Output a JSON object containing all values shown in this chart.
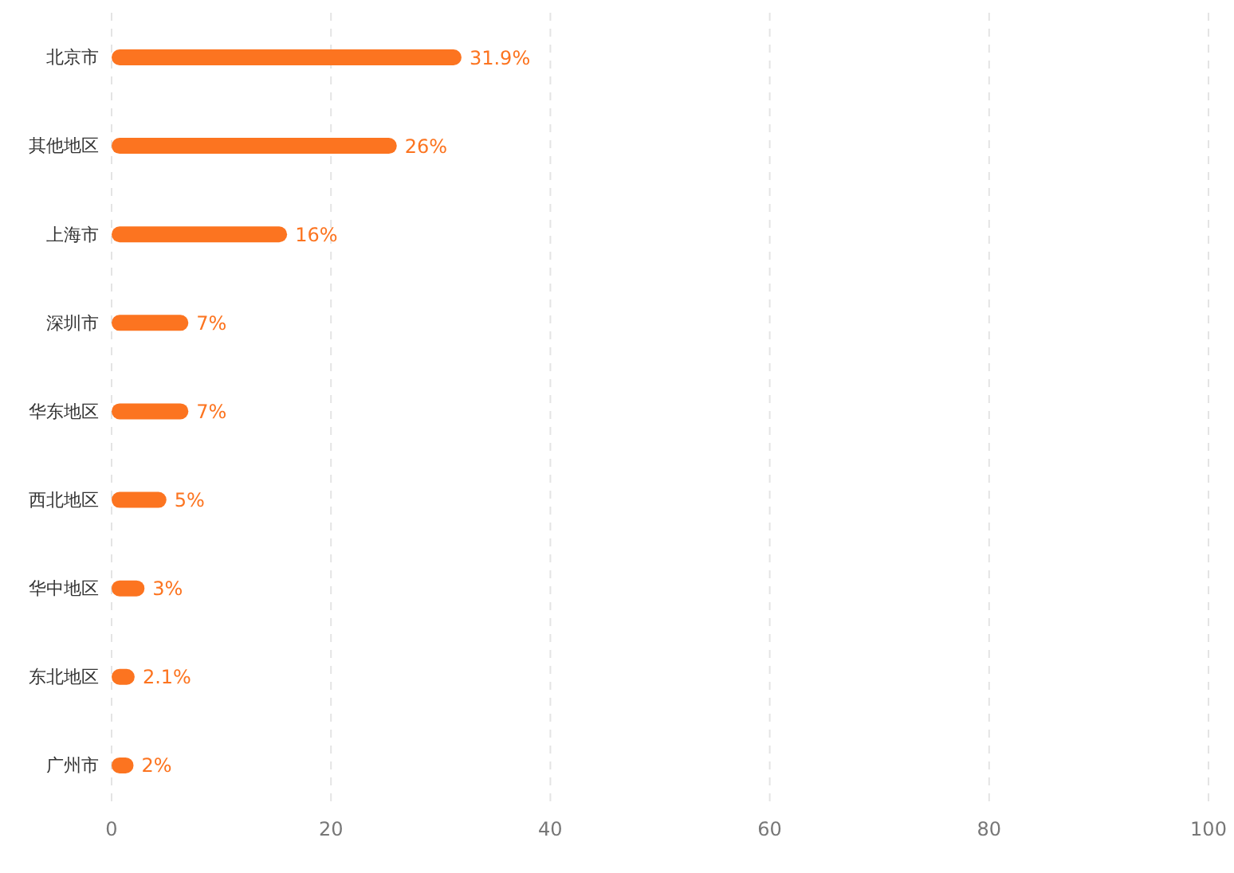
{
  "chart_data": {
    "type": "bar",
    "orientation": "horizontal",
    "categories": [
      "北京市",
      "其他地区",
      "上海市",
      "深圳市",
      "华东地区",
      "西北地区",
      "华中地区",
      "东北地区",
      "广州市"
    ],
    "values": [
      31.9,
      26,
      16,
      7,
      7,
      5,
      3,
      2.1,
      2
    ],
    "value_labels": [
      "31.9%",
      "26%",
      "16%",
      "7%",
      "7%",
      "5%",
      "3%",
      "2.1%",
      "2%"
    ],
    "color": "#fc7420",
    "xlim": [
      0,
      100
    ],
    "xticks": [
      0,
      20,
      40,
      60,
      80,
      100
    ],
    "grid": "x"
  }
}
